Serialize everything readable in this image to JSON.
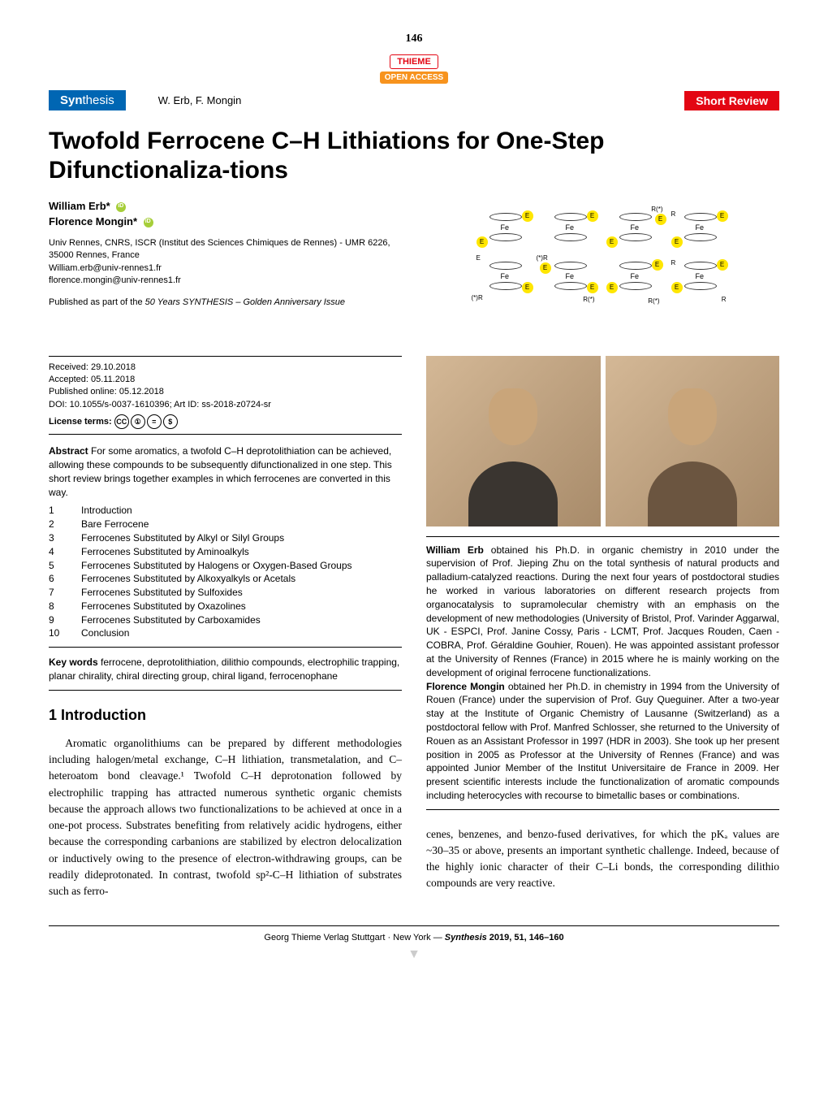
{
  "page_number": "146",
  "publisher_badge": "THIEME",
  "open_access_label": "OPEN ACCESS",
  "journal_name_bold": "Syn",
  "journal_name_thin": "thesis",
  "authors_short": "W. Erb, F. Mongin",
  "review_type": "Short Review",
  "title": "Twofold Ferrocene C–H Lithiations for One-Step Difunctionaliza-tions",
  "authors": [
    {
      "name": "William Erb*"
    },
    {
      "name": "Florence Mongin*"
    }
  ],
  "affiliation_lines": [
    "Univ Rennes, CNRS, ISCR (Institut des Sciences Chimiques de Rennes) - UMR 6226, 35000 Rennes, France",
    "William.erb@univ-rennes1.fr",
    "florence.mongin@univ-rennes1.fr"
  ],
  "published_note_prefix": "Published as part of the ",
  "published_note_italic": "50 Years SYNTHESIS – Golden Anniversary Issue",
  "meta": {
    "received": "Received: 29.10.2018",
    "accepted": "Accepted: 05.11.2018",
    "published": "Published online: 05.12.2018",
    "doi": "DOI: 10.1055/s-0037-1610396; Art ID: ss-2018-z0724-sr",
    "license_label": "License terms:"
  },
  "cc_icons": [
    "CC",
    "①",
    "=",
    "$"
  ],
  "abstract_label": "Abstract",
  "abstract_text": "For some aromatics, a twofold C–H deprotolithiation can be achieved, allowing these compounds to be subsequently difunctionalized in one step. This short review brings together examples in which ferrocenes are converted in this way.",
  "toc": [
    {
      "num": "1",
      "title": "Introduction"
    },
    {
      "num": "2",
      "title": "Bare Ferrocene"
    },
    {
      "num": "3",
      "title": "Ferrocenes Substituted by Alkyl or Silyl Groups"
    },
    {
      "num": "4",
      "title": "Ferrocenes Substituted by Aminoalkyls"
    },
    {
      "num": "5",
      "title": "Ferrocenes Substituted by Halogens or Oxygen-Based Groups"
    },
    {
      "num": "6",
      "title": "Ferrocenes Substituted by Alkoxyalkyls or Acetals"
    },
    {
      "num": "7",
      "title": "Ferrocenes Substituted by Sulfoxides"
    },
    {
      "num": "8",
      "title": "Ferrocenes Substituted by Oxazolines"
    },
    {
      "num": "9",
      "title": "Ferrocenes Substituted by Carboxamides"
    },
    {
      "num": "10",
      "title": "Conclusion"
    }
  ],
  "keywords_label": "Key words",
  "keywords_text": "ferrocene, deprotolithiation, dilithio compounds, electrophilic trapping, planar chirality, chiral directing group, chiral ligand, ferrocenophane",
  "section1_heading": "1    Introduction",
  "body_col1_p1": "Aromatic organolithiums can be prepared by different methodologies including halogen/metal exchange, C–H lithiation, transmetalation, and C–heteroatom bond cleavage.¹ Twofold C–H deprotonation followed by electrophilic trapping has attracted numerous synthetic organic chemists because the approach allows two functionalizations to be achieved at once in a one-pot process. Substrates benefiting from relatively acidic hydrogens, either because the corresponding carbanions are stabilized by electron delocalization or inductively owing to the presence of electron-withdrawing groups, can be readily dideprotonated. In contrast, twofold sp²-C–H lithiation of substrates such as ferro-",
  "bio1_name": "William Erb",
  "bio1_text": " obtained his Ph.D. in organic chemistry in 2010 under the supervision of Prof. Jieping Zhu on the total synthesis of natural products and palladium-catalyzed reactions. During the next four years of postdoctoral studies he worked in various laboratories on different research projects from organocatalysis to supramolecular chemistry with an emphasis on the development of new methodologies (University of Bristol, Prof. Varinder Aggarwal, UK - ESPCI, Prof. Janine Cossy, Paris - LCMT, Prof. Jacques Rouden, Caen - COBRA, Prof. Géraldine Gouhier, Rouen). He was appointed assistant professor at the University of Rennes (France) in 2015 where he is mainly working on the development of original ferrocene functionalizations.",
  "bio2_name": "Florence Mongin",
  "bio2_text": " obtained her Ph.D. in chemistry in 1994 from the University of Rouen (France) under the supervision of Prof. Guy Queguiner. After a two-year stay at the Institute of Organic Chemistry of Lausanne (Switzerland) as a postdoctoral fellow with Prof. Manfred Schlosser, she returned to the University of Rouen as an Assistant Professor in 1997 (HDR in 2003). She took up her present position in 2005 as Professor at the University of Rennes (France) and was appointed Junior Member of the Institut Universitaire de France in 2009. Her present scientific interests include the functionalization of aromatic compounds including heterocycles with recourse to bimetallic bases or combinations.",
  "body_col2_p1": "cenes, benzenes, and benzo-fused derivatives, for which the pKₐ values are ~30–35 or above, presents an important synthetic challenge. Indeed, because of the highly ionic character of their C–Li bonds, the corresponding dilithio compounds are very reactive.",
  "footer_text_prefix": "Georg Thieme Verlag  Stuttgart · New York — ",
  "footer_text_italic": "Synthesis",
  "footer_text_suffix": " 2019, 51, 146–160",
  "colors": {
    "thieme_red": "#e30613",
    "open_orange": "#f7931e",
    "journal_blue": "#0066b3",
    "orcid_green": "#a6ce39",
    "highlight_yellow": "#ffe600"
  }
}
